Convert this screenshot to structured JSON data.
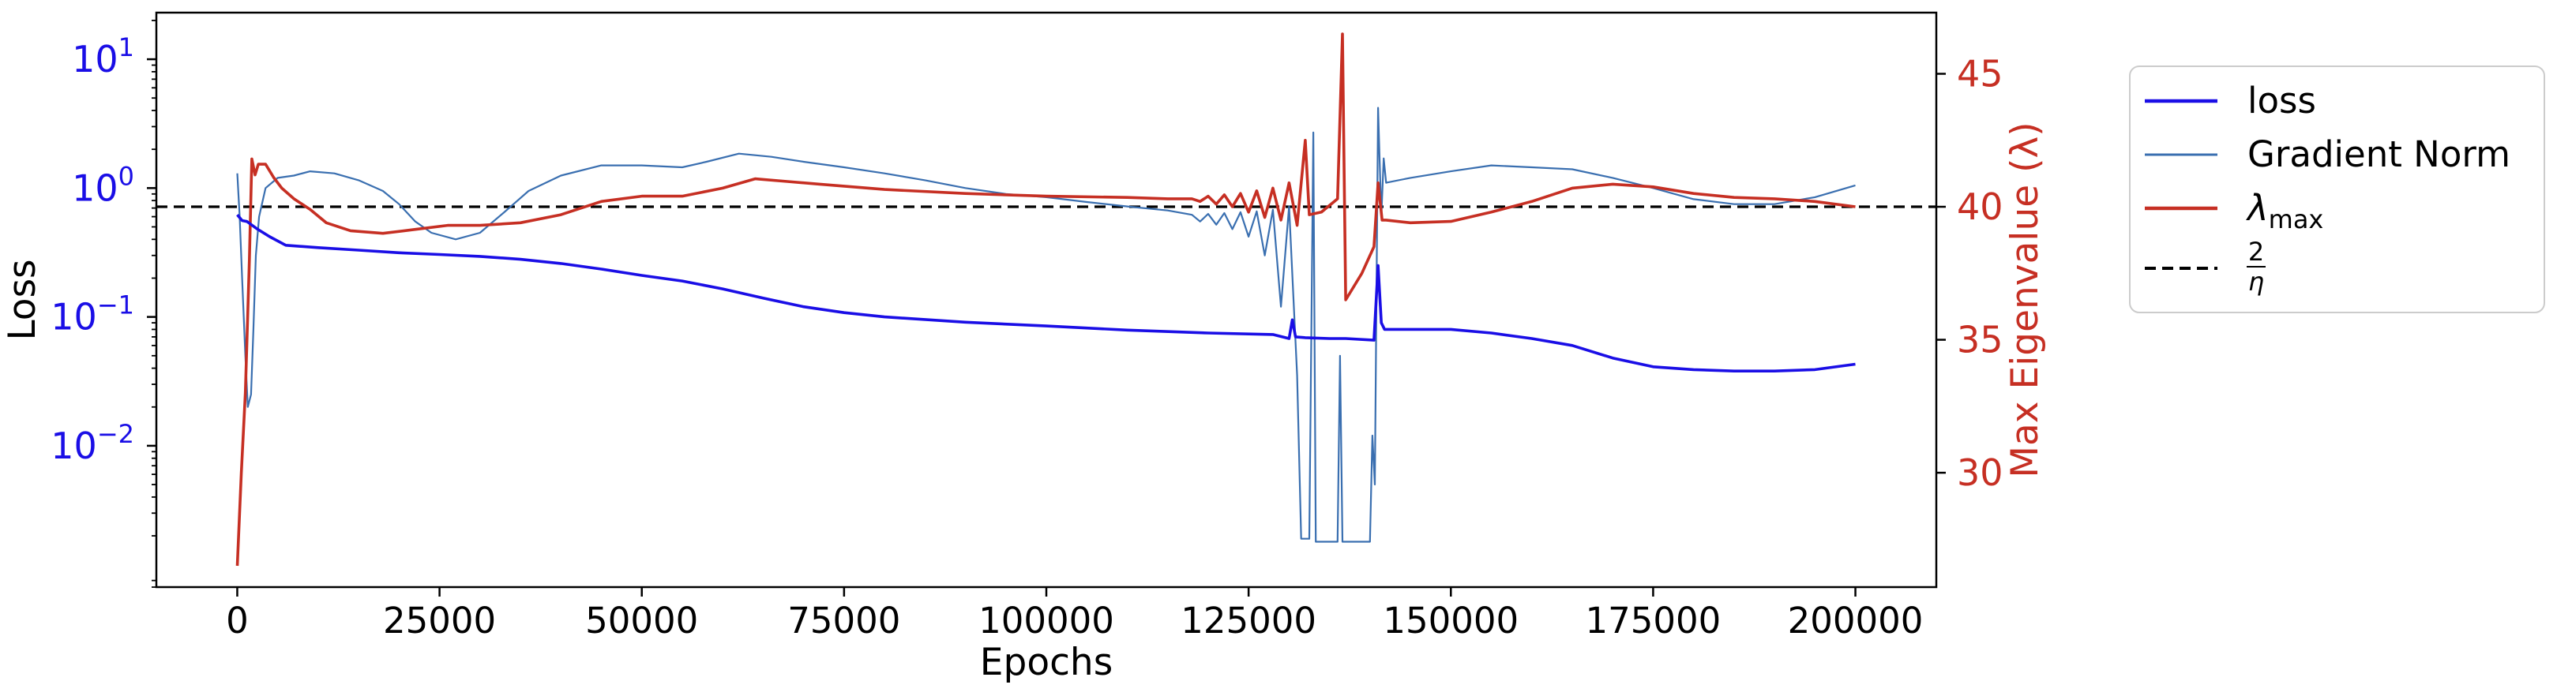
{
  "chart_data": {
    "type": "line",
    "xlabel": "Epochs",
    "ylabel_left": "Loss",
    "ylabel_right": "Max Eigenvalue (λ)",
    "xlim": [
      -10000,
      210000
    ],
    "ylim_left": [
      0.0008,
      23
    ],
    "ylim_right": [
      25.7,
      47.3
    ],
    "yscale_left": "log",
    "x_ticks": [
      0,
      25000,
      50000,
      75000,
      100000,
      125000,
      150000,
      175000,
      200000
    ],
    "x_tick_labels": [
      "0",
      "25000",
      "50000",
      "75000",
      "100000",
      "125000",
      "150000",
      "175000",
      "200000"
    ],
    "y_left_ticks": [
      {
        "base": "10",
        "exp": "1",
        "value": 10
      },
      {
        "base": "10",
        "exp": "0",
        "value": 1
      },
      {
        "base": "10",
        "exp": "−1",
        "value": 0.1
      },
      {
        "base": "10",
        "exp": "−2",
        "value": 0.01
      }
    ],
    "y_right_ticks": [
      30,
      35,
      40,
      45
    ],
    "y_right_tick_labels": [
      "30",
      "35",
      "40",
      "45"
    ],
    "legend_position": "outside right",
    "colors": {
      "loss": "#1a0ee6",
      "grad": "#3a6fb0",
      "lambda": "#c62f23",
      "threshold": "#000000",
      "left_axis": "#1a0ee6",
      "right_axis": "#c62f23"
    },
    "series": [
      {
        "name": "loss",
        "axis": "left",
        "points": [
          [
            0,
            0.62
          ],
          [
            600,
            0.56
          ],
          [
            1200,
            0.55
          ],
          [
            2500,
            0.48
          ],
          [
            4000,
            0.42
          ],
          [
            6000,
            0.36
          ],
          [
            10000,
            0.345
          ],
          [
            15000,
            0.33
          ],
          [
            20000,
            0.315
          ],
          [
            25000,
            0.305
          ],
          [
            30000,
            0.295
          ],
          [
            35000,
            0.28
          ],
          [
            40000,
            0.26
          ],
          [
            45000,
            0.235
          ],
          [
            50000,
            0.21
          ],
          [
            55000,
            0.19
          ],
          [
            60000,
            0.165
          ],
          [
            65000,
            0.14
          ],
          [
            70000,
            0.12
          ],
          [
            75000,
            0.108
          ],
          [
            80000,
            0.1
          ],
          [
            90000,
            0.091
          ],
          [
            100000,
            0.085
          ],
          [
            110000,
            0.079
          ],
          [
            120000,
            0.075
          ],
          [
            128000,
            0.073
          ],
          [
            130000,
            0.068
          ],
          [
            130400,
            0.095
          ],
          [
            130800,
            0.07
          ],
          [
            132000,
            0.069
          ],
          [
            135000,
            0.068
          ],
          [
            137000,
            0.068
          ],
          [
            140500,
            0.066
          ],
          [
            141000,
            0.25
          ],
          [
            141400,
            0.09
          ],
          [
            141800,
            0.08
          ],
          [
            145000,
            0.08
          ],
          [
            150000,
            0.08
          ],
          [
            155000,
            0.075
          ],
          [
            160000,
            0.068
          ],
          [
            165000,
            0.06
          ],
          [
            170000,
            0.048
          ],
          [
            175000,
            0.041
          ],
          [
            180000,
            0.039
          ],
          [
            185000,
            0.038
          ],
          [
            190000,
            0.038
          ],
          [
            195000,
            0.039
          ],
          [
            200000,
            0.043
          ]
        ]
      },
      {
        "name": "Gradient Norm",
        "axis": "left",
        "points": [
          [
            0,
            1.3
          ],
          [
            300,
            0.6
          ],
          [
            600,
            0.2
          ],
          [
            1000,
            0.05
          ],
          [
            1300,
            0.02
          ],
          [
            1700,
            0.025
          ],
          [
            2000,
            0.08
          ],
          [
            2300,
            0.3
          ],
          [
            2700,
            0.6
          ],
          [
            3500,
            1.0
          ],
          [
            5000,
            1.2
          ],
          [
            7000,
            1.25
          ],
          [
            9000,
            1.35
          ],
          [
            12000,
            1.3
          ],
          [
            15000,
            1.15
          ],
          [
            18000,
            0.95
          ],
          [
            20000,
            0.75
          ],
          [
            22000,
            0.55
          ],
          [
            24000,
            0.45
          ],
          [
            27000,
            0.4
          ],
          [
            30000,
            0.45
          ],
          [
            33000,
            0.65
          ],
          [
            36000,
            0.95
          ],
          [
            40000,
            1.25
          ],
          [
            45000,
            1.5
          ],
          [
            50000,
            1.5
          ],
          [
            55000,
            1.45
          ],
          [
            58000,
            1.6
          ],
          [
            62000,
            1.85
          ],
          [
            66000,
            1.75
          ],
          [
            70000,
            1.6
          ],
          [
            75000,
            1.45
          ],
          [
            80000,
            1.3
          ],
          [
            85000,
            1.15
          ],
          [
            90000,
            1.0
          ],
          [
            95000,
            0.9
          ],
          [
            100000,
            0.85
          ],
          [
            105000,
            0.78
          ],
          [
            110000,
            0.72
          ],
          [
            115000,
            0.67
          ],
          [
            118000,
            0.62
          ],
          [
            119000,
            0.55
          ],
          [
            120000,
            0.63
          ],
          [
            121000,
            0.52
          ],
          [
            122000,
            0.64
          ],
          [
            123000,
            0.48
          ],
          [
            124000,
            0.65
          ],
          [
            125000,
            0.42
          ],
          [
            126000,
            0.66
          ],
          [
            127000,
            0.3
          ],
          [
            128000,
            0.68
          ],
          [
            129000,
            0.12
          ],
          [
            130000,
            0.72
          ],
          [
            131000,
            0.035
          ],
          [
            131500,
            0.0019
          ],
          [
            132500,
            0.0019
          ],
          [
            133000,
            2.7
          ],
          [
            133300,
            0.0018
          ],
          [
            134000,
            0.0018
          ],
          [
            136000,
            0.0018
          ],
          [
            136300,
            0.05
          ],
          [
            136600,
            0.0018
          ],
          [
            137000,
            0.0018
          ],
          [
            140000,
            0.0018
          ],
          [
            140300,
            0.012
          ],
          [
            140600,
            0.005
          ],
          [
            141000,
            4.2
          ],
          [
            141400,
            0.6
          ],
          [
            141700,
            1.7
          ],
          [
            142000,
            1.1
          ],
          [
            145000,
            1.2
          ],
          [
            150000,
            1.35
          ],
          [
            155000,
            1.5
          ],
          [
            160000,
            1.45
          ],
          [
            165000,
            1.4
          ],
          [
            170000,
            1.2
          ],
          [
            175000,
            1.0
          ],
          [
            180000,
            0.82
          ],
          [
            185000,
            0.75
          ],
          [
            190000,
            0.75
          ],
          [
            195000,
            0.85
          ],
          [
            200000,
            1.05
          ]
        ]
      },
      {
        "name": "λmax",
        "axis": "right",
        "points": [
          [
            0,
            26.5
          ],
          [
            500,
            30
          ],
          [
            1000,
            33
          ],
          [
            1500,
            38
          ],
          [
            1800,
            41.8
          ],
          [
            2200,
            41.2
          ],
          [
            2600,
            41.6
          ],
          [
            3500,
            41.6
          ],
          [
            4500,
            41.1
          ],
          [
            5500,
            40.7
          ],
          [
            7000,
            40.3
          ],
          [
            9000,
            39.9
          ],
          [
            11000,
            39.4
          ],
          [
            14000,
            39.1
          ],
          [
            18000,
            39.0
          ],
          [
            22000,
            39.15
          ],
          [
            26000,
            39.3
          ],
          [
            30000,
            39.3
          ],
          [
            35000,
            39.4
          ],
          [
            40000,
            39.7
          ],
          [
            45000,
            40.2
          ],
          [
            50000,
            40.4
          ],
          [
            55000,
            40.4
          ],
          [
            60000,
            40.7
          ],
          [
            64000,
            41.05
          ],
          [
            68000,
            40.95
          ],
          [
            72000,
            40.85
          ],
          [
            80000,
            40.65
          ],
          [
            90000,
            40.5
          ],
          [
            100000,
            40.4
          ],
          [
            110000,
            40.35
          ],
          [
            115000,
            40.3
          ],
          [
            118000,
            40.3
          ],
          [
            119000,
            40.2
          ],
          [
            120000,
            40.4
          ],
          [
            121000,
            40.1
          ],
          [
            122000,
            40.45
          ],
          [
            123000,
            40.0
          ],
          [
            124000,
            40.5
          ],
          [
            125000,
            39.8
          ],
          [
            126000,
            40.6
          ],
          [
            127000,
            39.6
          ],
          [
            128000,
            40.7
          ],
          [
            129000,
            39.5
          ],
          [
            130000,
            40.9
          ],
          [
            131000,
            39.3
          ],
          [
            132000,
            42.5
          ],
          [
            132500,
            39.7
          ],
          [
            134000,
            39.8
          ],
          [
            136000,
            40.3
          ],
          [
            136600,
            46.5
          ],
          [
            137000,
            36.5
          ],
          [
            139000,
            37.5
          ],
          [
            140500,
            38.5
          ],
          [
            141000,
            40.9
          ],
          [
            141500,
            39.5
          ],
          [
            142000,
            39.5
          ],
          [
            145000,
            39.4
          ],
          [
            150000,
            39.45
          ],
          [
            155000,
            39.8
          ],
          [
            160000,
            40.2
          ],
          [
            165000,
            40.7
          ],
          [
            170000,
            40.85
          ],
          [
            175000,
            40.75
          ],
          [
            180000,
            40.5
          ],
          [
            185000,
            40.35
          ],
          [
            190000,
            40.3
          ],
          [
            195000,
            40.2
          ],
          [
            200000,
            40.0
          ]
        ]
      },
      {
        "name": "2/η",
        "axis": "right",
        "type": "hline",
        "value": 40
      }
    ],
    "legend": {
      "items": [
        {
          "label": "loss",
          "style": "loss"
        },
        {
          "label": "Gradient Norm",
          "style": "grad"
        },
        {
          "label": "λ",
          "sub": "max",
          "style": "lambda"
        },
        {
          "label_num": "2",
          "label_den": "η",
          "style": "threshold"
        }
      ]
    }
  }
}
